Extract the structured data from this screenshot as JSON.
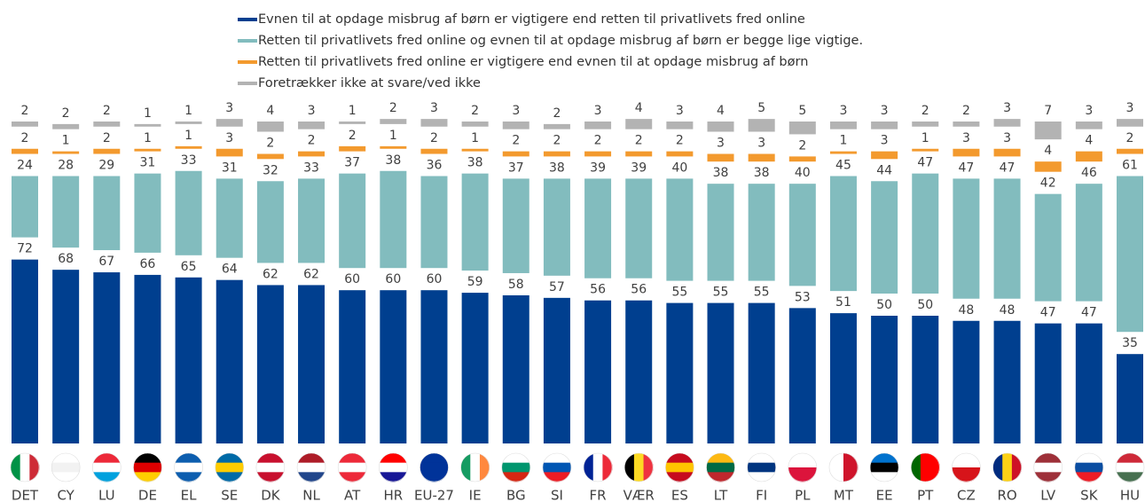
{
  "chart_data": {
    "type": "bar",
    "stacked": true,
    "categories": [
      "DET",
      "CY",
      "LU",
      "DE",
      "EL",
      "SE",
      "DK",
      "NL",
      "AT",
      "HR",
      "EU-27",
      "IE",
      "BG",
      "SI",
      "FR",
      "VÆR",
      "ES",
      "LT",
      "FI",
      "PL",
      "MT",
      "EE",
      "PT",
      "CZ",
      "RO",
      "LV",
      "SK",
      "HU"
    ],
    "series": [
      {
        "name": "Evnen til at opdage misbrug af børn er vigtigere end retten til privatlivets fred online",
        "color": "#003f8f",
        "values": [
          72,
          68,
          67,
          66,
          65,
          64,
          62,
          62,
          60,
          60,
          60,
          59,
          58,
          57,
          56,
          56,
          55,
          55,
          55,
          53,
          51,
          50,
          50,
          48,
          48,
          47,
          47,
          35
        ]
      },
      {
        "name": "Retten til privatlivets fred online og evnen til at opdage misbrug af børn er begge lige vigtige.",
        "color": "#82bcbe",
        "values": [
          24,
          28,
          29,
          31,
          33,
          31,
          32,
          33,
          37,
          38,
          36,
          38,
          37,
          38,
          39,
          39,
          40,
          38,
          38,
          40,
          45,
          44,
          47,
          47,
          47,
          42,
          46,
          61
        ]
      },
      {
        "name": "Retten til privatlivets fred online er vigtigere end evnen til at opdage misbrug af børn",
        "color": "#f39a2e",
        "values": [
          2,
          1,
          2,
          1,
          1,
          3,
          2,
          2,
          2,
          1,
          2,
          1,
          2,
          2,
          2,
          2,
          2,
          3,
          3,
          2,
          1,
          3,
          1,
          3,
          3,
          4,
          4,
          2
        ]
      },
      {
        "name": "Foretrækker ikke at svare/ved ikke",
        "color": "#b3b3b3",
        "values": [
          2,
          2,
          2,
          1,
          1,
          3,
          4,
          3,
          1,
          2,
          3,
          2,
          3,
          2,
          3,
          4,
          3,
          4,
          5,
          5,
          3,
          3,
          2,
          2,
          3,
          7,
          3,
          3
        ]
      }
    ]
  }
}
